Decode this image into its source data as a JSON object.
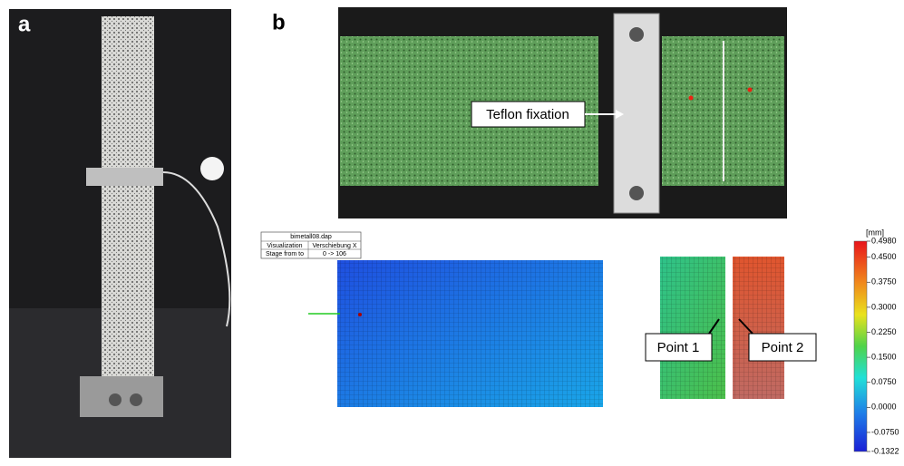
{
  "panels": {
    "a": {
      "label": "a"
    },
    "b": {
      "label": "b"
    }
  },
  "photo_annotation": "Teflon fixation",
  "info_table": {
    "rows": [
      [
        "bimetall08.dap"
      ],
      [
        "Visualization",
        "Verschiebung X"
      ],
      [
        "Stage from to",
        "0 -> 106"
      ]
    ]
  },
  "points": [
    "Point 1",
    "Point 2"
  ],
  "colorbar": {
    "unit": "[mm]",
    "range": [
      -0.1322,
      0.498
    ],
    "ticks": [
      {
        "value": 0.498,
        "label": "0.4980"
      },
      {
        "value": 0.45,
        "label": "0.4500"
      },
      {
        "value": 0.375,
        "label": "0.3750"
      },
      {
        "value": 0.3,
        "label": "0.3000"
      },
      {
        "value": 0.225,
        "label": "0.2250"
      },
      {
        "value": 0.15,
        "label": "0.1500"
      },
      {
        "value": 0.075,
        "label": "0.0750"
      },
      {
        "value": 0,
        "label": "0.0000"
      },
      {
        "value": -0.075,
        "label": "-0.0750"
      },
      {
        "value": -0.1322,
        "label": "-0.1322"
      }
    ]
  }
}
